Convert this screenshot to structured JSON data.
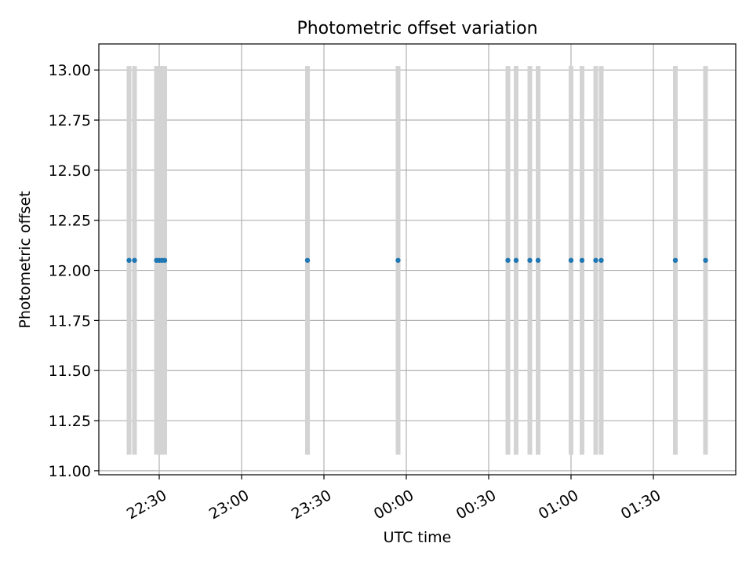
{
  "chart_data": {
    "type": "scatter",
    "title": "Photometric offset variation",
    "xlabel": "UTC time",
    "ylabel": "Photometric offset",
    "grid": true,
    "legend": "none",
    "xlim": [
      "22:08",
      "02:00"
    ],
    "ylim": [
      10.98,
      13.13
    ],
    "x_ticks": [
      "22:30",
      "23:00",
      "23:30",
      "00:00",
      "00:30",
      "01:00",
      "01:30"
    ],
    "y_ticks": [
      "11.00",
      "11.25",
      "11.50",
      "11.75",
      "12.00",
      "12.25",
      "12.50",
      "12.75",
      "13.00"
    ],
    "series": [
      {
        "x": [
          "22:19",
          "22:21",
          "22:29",
          "22:30",
          "22:31",
          "22:32",
          "23:24",
          "23:57",
          "00:37",
          "00:40",
          "00:45",
          "00:48",
          "01:00",
          "01:04",
          "01:09",
          "01:11",
          "01:38",
          "01:49"
        ],
        "y": [
          12.05,
          12.05,
          12.05,
          12.05,
          12.05,
          12.05,
          12.05,
          12.05,
          12.05,
          12.05,
          12.05,
          12.05,
          12.05,
          12.05,
          12.05,
          12.05,
          12.05,
          12.05
        ],
        "y_err": [
          0.97,
          0.97,
          0.97,
          0.97,
          0.97,
          0.97,
          0.97,
          0.97,
          0.97,
          0.97,
          0.97,
          0.97,
          0.97,
          0.97,
          0.97,
          0.97,
          0.97,
          0.97
        ]
      }
    ],
    "colors": {
      "marker": "#1f77b4",
      "errorbar": "#d3d3d3",
      "grid": "#b0b0b0"
    }
  }
}
